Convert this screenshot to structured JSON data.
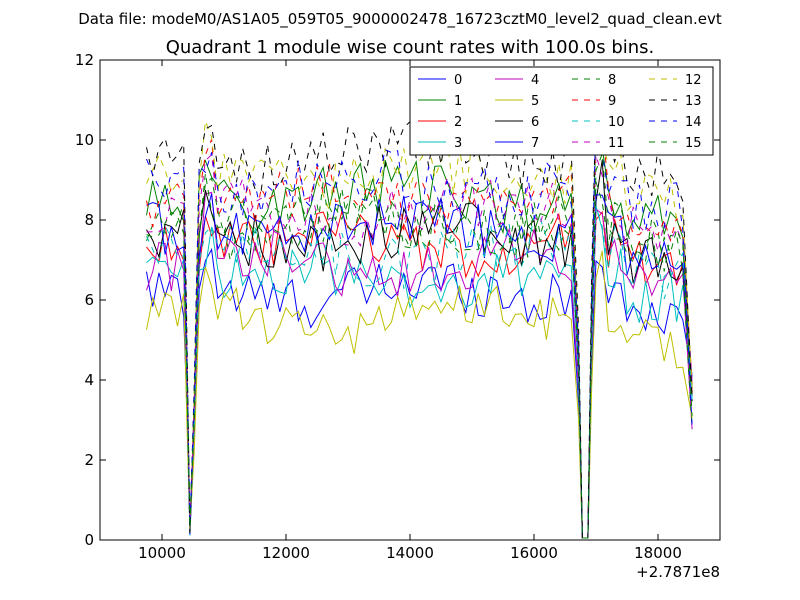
{
  "chart_data": {
    "type": "line",
    "supertitle": "Data file: modeM0/AS1A05_059T05_9000002478_16723cztM0_level2_quad_clean.evt",
    "title": "Quadrant 1 module wise count rates with 100.0s bins.",
    "xlabel": "",
    "ylabel": "",
    "x_offset_label": "+2.7871e8",
    "xlim": [
      9000,
      19000
    ],
    "ylim": [
      0,
      12
    ],
    "xticks": [
      10000,
      12000,
      14000,
      16000,
      18000
    ],
    "xtick_labels": [
      "10000",
      "12000",
      "14000",
      "16000",
      "18000"
    ],
    "yticks": [
      0,
      2,
      4,
      6,
      8,
      10,
      12
    ],
    "ytick_labels": [
      "0",
      "2",
      "4",
      "6",
      "8",
      "10",
      "12"
    ],
    "legend_position": "top-right",
    "legend_columns": 4,
    "segments": [
      {
        "x_start": 9750,
        "x_end": 10450,
        "dip_at": 10450
      },
      {
        "x_start": 10450,
        "x_end": 16750,
        "dip_from": 16750,
        "dip_to": 16900
      },
      {
        "x_start": 16900,
        "x_end": 18550
      }
    ],
    "series": [
      {
        "name": "0",
        "color": "#0000ff",
        "dash": "solid",
        "level": 6.2
      },
      {
        "name": "1",
        "color": "#008000",
        "dash": "solid",
        "level": 8.6
      },
      {
        "name": "2",
        "color": "#ff0000",
        "dash": "solid",
        "level": 7.4
      },
      {
        "name": "3",
        "color": "#00bfbf",
        "dash": "solid",
        "level": 6.6
      },
      {
        "name": "4",
        "color": "#bf00bf",
        "dash": "solid",
        "level": 6.9
      },
      {
        "name": "5",
        "color": "#bfbf00",
        "dash": "solid",
        "level": 5.5
      },
      {
        "name": "6",
        "color": "#000000",
        "dash": "solid",
        "level": 7.6
      },
      {
        "name": "7",
        "color": "#0000ff",
        "dash": "solid",
        "level": 7.8
      },
      {
        "name": "8",
        "color": "#008000",
        "dash": "dashed",
        "level": 7.9
      },
      {
        "name": "9",
        "color": "#ff0000",
        "dash": "dashed",
        "level": 8.5
      },
      {
        "name": "10",
        "color": "#00bfbf",
        "dash": "dashed",
        "level": 7.2
      },
      {
        "name": "11",
        "color": "#bf00bf",
        "dash": "dashed",
        "level": 8.3
      },
      {
        "name": "12",
        "color": "#bfbf00",
        "dash": "dashed",
        "level": 9.1
      },
      {
        "name": "13",
        "color": "#000000",
        "dash": "dashed",
        "level": 9.6
      },
      {
        "name": "14",
        "color": "#0000ff",
        "dash": "dashed",
        "level": 8.9
      },
      {
        "name": "15",
        "color": "#008000",
        "dash": "dashed",
        "level": 8.0
      }
    ]
  }
}
